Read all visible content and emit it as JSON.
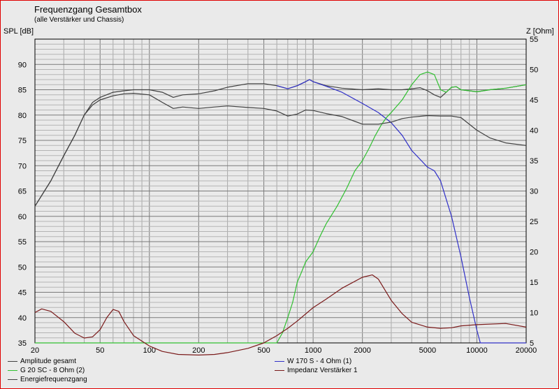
{
  "header": {
    "title": "Frequenzgang Gesamtbox",
    "subtitle": "(alle Verstärker und Chassis)",
    "left_axis_label": "SPL [dB]",
    "right_axis_label": "Z [Ohm]"
  },
  "colors": {
    "background": "#eaeaea",
    "grid": "#9a9a9a",
    "border": "#e00000",
    "amplitude": "#404040",
    "woofer": "#3030c8",
    "tweeter": "#30c030",
    "impedance": "#7a1a1a",
    "energy": "#404040"
  },
  "chart_data": {
    "type": "line",
    "x_scale": "log",
    "xlim": [
      20,
      20000
    ],
    "x_ticks": [
      20,
      50,
      100,
      200,
      500,
      1000,
      2000,
      5000,
      10000,
      20000
    ],
    "ylim": [
      35,
      95
    ],
    "y_ticks": [
      35,
      40,
      45,
      50,
      55,
      60,
      65,
      70,
      75,
      80,
      85,
      90
    ],
    "ylabel": "SPL [dB]",
    "y2lim": [
      5,
      55
    ],
    "y2_ticks": [
      5,
      10,
      15,
      20,
      25,
      30,
      35,
      40,
      45,
      50,
      55
    ],
    "y2label": "Z [Ohm]",
    "grid": true,
    "legend_position": "bottom",
    "series": [
      {
        "name": "Amplitude gesamt",
        "color": "#404040",
        "axis": "left",
        "x": [
          20,
          25,
          30,
          35,
          40,
          45,
          50,
          60,
          70,
          80,
          100,
          120,
          140,
          160,
          200,
          250,
          300,
          400,
          500,
          600,
          700,
          800,
          900,
          950,
          1000,
          1200,
          1500,
          2000,
          2500,
          3000,
          3500,
          4000,
          4500,
          5000,
          5500,
          6000,
          6500,
          7000,
          7500,
          8000,
          9000,
          10000,
          12000,
          15000,
          20000
        ],
        "y": [
          62,
          67,
          72,
          76,
          80,
          82.5,
          83.5,
          84.5,
          84.8,
          85,
          85,
          84.5,
          83.5,
          84,
          84.2,
          84.8,
          85.5,
          86.2,
          86.2,
          85.8,
          85.2,
          85.8,
          86.6,
          87,
          86.6,
          85.8,
          85.3,
          85,
          85.2,
          85,
          85,
          85.2,
          85.4,
          84.8,
          84,
          83.5,
          84.5,
          85.5,
          85.6,
          85,
          84.8,
          84.6,
          85,
          85.3,
          86
        ]
      },
      {
        "name": "W 170 S - 4 Ohm (1)",
        "color": "#3030c8",
        "axis": "left",
        "x": [
          600,
          700,
          800,
          900,
          950,
          1000,
          1200,
          1500,
          2000,
          2500,
          3000,
          3500,
          4000,
          5000,
          5500,
          6000,
          7000,
          8000,
          9000,
          10000,
          10500,
          20000
        ],
        "y": [
          85.8,
          85.2,
          85.8,
          86.6,
          87,
          86.6,
          85.7,
          84.5,
          82.3,
          80.5,
          78.5,
          76,
          73,
          69.7,
          69,
          67,
          60,
          52,
          44,
          37.5,
          35,
          35
        ]
      },
      {
        "name": "G 20 SC - 8 Ohm (2)",
        "color": "#30c030",
        "axis": "left",
        "x": [
          20,
          600,
          650,
          700,
          750,
          800,
          850,
          900,
          1000,
          1100,
          1200,
          1400,
          1600,
          1800,
          2000,
          2200,
          2400,
          2600,
          2800,
          3000,
          3500,
          4000,
          4500,
          5000,
          5500,
          6000,
          6500,
          7000,
          7500,
          8000,
          9000,
          10000,
          12000,
          15000,
          20000
        ],
        "y": [
          35,
          35,
          37,
          40,
          43,
          47,
          49,
          51,
          53,
          56,
          58.5,
          62,
          65.5,
          69,
          71,
          73.5,
          76,
          78,
          79.5,
          80.5,
          83,
          86,
          88,
          88.5,
          88,
          85,
          84.5,
          85.5,
          85.6,
          85,
          84.8,
          84.6,
          85,
          85.3,
          86
        ]
      },
      {
        "name": "Impedanz Verstärker 1",
        "color": "#7a1a1a",
        "axis": "right",
        "x": [
          20,
          22,
          25,
          30,
          35,
          40,
          45,
          50,
          55,
          60,
          65,
          70,
          80,
          100,
          120,
          150,
          200,
          250,
          300,
          400,
          500,
          600,
          700,
          800,
          1000,
          1200,
          1500,
          2000,
          2300,
          2500,
          3000,
          3500,
          4000,
          5000,
          6000,
          7000,
          8000,
          10000,
          15000,
          20000
        ],
        "y": [
          10,
          10.6,
          10.2,
          8.5,
          6.6,
          5.8,
          6,
          7.2,
          9.2,
          10.5,
          10.2,
          8.5,
          6.2,
          4.5,
          3.6,
          3.1,
          3.0,
          3.1,
          3.4,
          4.1,
          5,
          6.2,
          7.4,
          8.6,
          10.8,
          12.2,
          14,
          15.8,
          16.2,
          15.5,
          12,
          9.8,
          8.4,
          7.6,
          7.4,
          7.5,
          7.8,
          8,
          8.2,
          7.6
        ]
      },
      {
        "name": "Energiefrequenzgang",
        "color": "#404040",
        "axis": "left",
        "x": [
          20,
          25,
          30,
          35,
          40,
          45,
          50,
          60,
          70,
          80,
          100,
          120,
          140,
          160,
          200,
          250,
          300,
          400,
          500,
          600,
          700,
          800,
          900,
          1000,
          1200,
          1500,
          2000,
          2500,
          3000,
          3500,
          4000,
          5000,
          6000,
          7000,
          8000,
          10000,
          12000,
          15000,
          20000
        ],
        "y": [
          62,
          67,
          72,
          76,
          80,
          82,
          83,
          83.8,
          84.2,
          84.3,
          84,
          82.5,
          81.3,
          81.6,
          81.3,
          81.6,
          81.8,
          81.5,
          81.3,
          80.8,
          79.8,
          80.2,
          81,
          80.9,
          80.3,
          79.7,
          78.2,
          78.2,
          78.6,
          79.3,
          79.6,
          79.9,
          79.8,
          79.8,
          79.5,
          77,
          75.5,
          74.5,
          74
        ]
      }
    ]
  }
}
